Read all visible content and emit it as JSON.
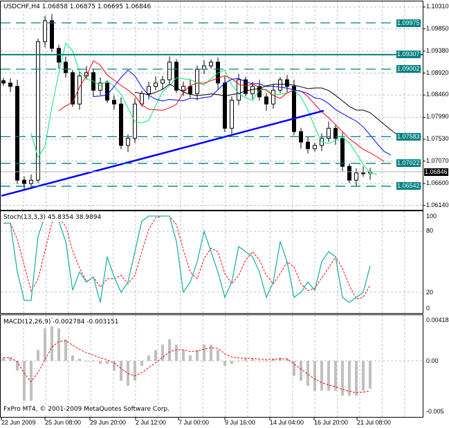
{
  "chart_data": {
    "type": "candlestick",
    "symbol_title": "USDCHF,H4",
    "ohlc_readout": [
      "1.06858",
      "1.06875",
      "1.06695",
      "1.06846"
    ],
    "closes": [
      1.0871,
      1.0864,
      1.0667,
      1.066,
      1.0667,
      1.0958,
      1.1002,
      1.0944,
      1.0915,
      1.0893,
      1.0827,
      1.0886,
      1.0893,
      1.0856,
      1.0871,
      1.0835,
      1.0827,
      1.074,
      1.0755,
      1.0827,
      1.0849,
      1.0864,
      1.0871,
      1.0878,
      1.0915,
      1.0856,
      1.0864,
      1.0849,
      1.09,
      1.0907,
      1.0915,
      1.0871,
      1.0776,
      1.0835,
      1.0878,
      1.0849,
      1.0864,
      1.0842,
      1.0827,
      1.0856,
      1.0878,
      1.0864,
      1.0769,
      1.0747,
      1.0733,
      1.074,
      1.0755,
      1.0776,
      1.0755,
      1.0696,
      1.0667,
      1.0682,
      1.0682,
      1.0685
    ],
    "ylim": [
      1.06,
      1.1045
    ],
    "y_ticks": [
      "1.10310",
      "1.09850",
      "1.09380",
      "1.08920",
      "1.08460",
      "1.07990",
      "1.07530",
      "1.07070",
      "1.06600",
      "1.06140"
    ],
    "levels": [
      {
        "value": 1.09975,
        "label": "1.09975",
        "style": "dashed"
      },
      {
        "value": 1.09307,
        "label": "1.09307",
        "style": "solid"
      },
      {
        "value": 1.09002,
        "label": "1.09002",
        "style": "dashed"
      },
      {
        "value": 1.07583,
        "label": "1.07583",
        "style": "dashed"
      },
      {
        "value": 1.07022,
        "label": "1.07022",
        "style": "dashed"
      },
      {
        "value": 1.06542,
        "label": "1.06542",
        "style": "dashed"
      }
    ],
    "current_price": {
      "value": 1.06846,
      "label": "1.06846"
    },
    "trendline": {
      "from": 1.0634,
      "to": 1.0813
    },
    "moving_averages": [
      {
        "period": 4,
        "color": "#00e87a"
      },
      {
        "period": 7,
        "color": "#ff0000"
      },
      {
        "period": 11,
        "color": "#0000ff"
      },
      {
        "period": 15,
        "color": "#000000"
      }
    ],
    "x_ticks": [
      "22 Jun 2009",
      "25 Jun 08:00",
      "29 Jun 20:00",
      "2 Jul 12:00",
      "7 Jul 00:00",
      "9 Jul 16:00",
      "14 Jul 04:00",
      "16 Jul 20:00",
      "21 Jul 08:00"
    ],
    "stoch": {
      "title": "Stoch(13,3,3) 45.8354 38.9894",
      "y_ticks": [
        "100",
        "80",
        "20",
        "0"
      ],
      "main": [
        88,
        88,
        40,
        12,
        12,
        75,
        95,
        95,
        90,
        70,
        22,
        40,
        30,
        35,
        10,
        55,
        35,
        20,
        30,
        60,
        90,
        95,
        95,
        95,
        95,
        70,
        20,
        30,
        50,
        80,
        60,
        40,
        15,
        30,
        65,
        60,
        55,
        40,
        15,
        30,
        70,
        50,
        15,
        20,
        30,
        22,
        50,
        60,
        55,
        15,
        10,
        15,
        20,
        46
      ],
      "main_color": "#20b2aa",
      "signal_color": "#ff0000"
    },
    "macd": {
      "title": "MACD(12,26,9) -0.002784 -0.003151",
      "y_ticks": [
        "0.004183",
        "0.00",
        "-0.005"
      ],
      "ylim": [
        -0.005,
        0.004183
      ],
      "histogram": [
        0.0003,
        0.0003,
        -0.001,
        -0.004,
        -0.004,
        0.001,
        0.003,
        0.004,
        0.003,
        0.002,
        0.0005,
        0.0002,
        0,
        0,
        -0.0003,
        -0.0003,
        -0.001,
        -0.002,
        -0.0025,
        -0.002,
        -0.0005,
        0.0005,
        0.001,
        0.0015,
        0.002,
        0.0015,
        0.001,
        0.0005,
        0.001,
        0.0015,
        0.0015,
        0.001,
        -0.0005,
        -0.0003,
        0,
        0.0002,
        0.0002,
        0,
        0,
        0.0002,
        0.0003,
        0.0002,
        -0.0015,
        -0.002,
        -0.0025,
        -0.003,
        -0.003,
        -0.003,
        -0.003,
        -0.0035,
        -0.0035,
        -0.0035,
        -0.003,
        -0.0028
      ],
      "bar_color": "#c0c0c0",
      "signal_color": "#ff0000"
    },
    "copyright": "FxPro MT4, © 2001-2009 MetaQuotes Software Corp.",
    "accent": "#008080"
  }
}
